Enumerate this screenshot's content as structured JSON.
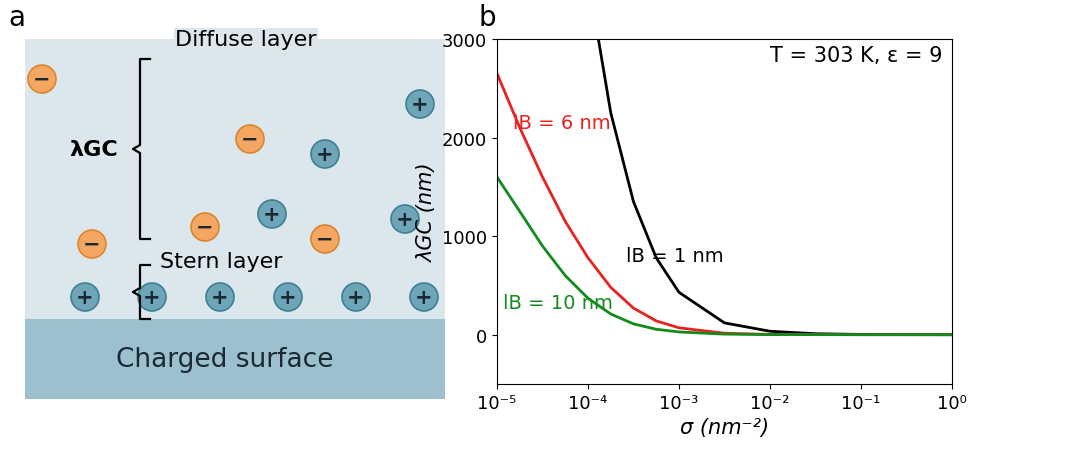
{
  "diagram": {
    "panel_label": "a",
    "diffuse_layer": "Diffuse layer",
    "length_label": "λGC",
    "stern_layer": "Stern layer",
    "surface": "Charged surface",
    "cation_sign": "+",
    "anion_sign": "−"
  },
  "chart_data": {
    "type": "line",
    "panel_label": "b",
    "annotation": "T = 303 K, ε = 9",
    "x_label": "σ (nm⁻²)",
    "y_label": "λGC (nm)",
    "log": "x",
    "xlim": [
      1e-05,
      1
    ],
    "xticks": [
      {
        "value": 1e-05,
        "label": "10⁻⁵"
      },
      {
        "value": 0.0001,
        "label": "10⁻⁴"
      },
      {
        "value": 0.001,
        "label": "10⁻³"
      },
      {
        "value": 0.01,
        "label": "10⁻²"
      },
      {
        "value": 0.1,
        "label": "10⁻¹"
      },
      {
        "value": 1,
        "label": "10⁰"
      }
    ],
    "ylim": [
      -500,
      3000
    ],
    "yticks": [
      0,
      1000,
      2000,
      3000
    ],
    "series": [
      {
        "name": "lB = 1 nm",
        "color": "#000000",
        "x": [
          0.00013,
          0.000178,
          0.000316,
          0.000562,
          0.001,
          0.00316,
          0.01,
          0.0316,
          0.1,
          1
        ],
        "values": [
          3000,
          2250,
          1350,
          780,
          430,
          120,
          35,
          10,
          3,
          0.3
        ]
      },
      {
        "name": "lB = 6 nm",
        "color": "#e8221f",
        "x": [
          1e-05,
          1.78e-05,
          3.16e-05,
          5.62e-05,
          0.0001,
          0.000178,
          0.000316,
          0.000562,
          0.001,
          0.00316,
          0.01,
          0.1,
          1
        ],
        "values": [
          2650,
          2100,
          1600,
          1150,
          780,
          480,
          270,
          140,
          70,
          15,
          3,
          0.3,
          0.03
        ]
      },
      {
        "name": "lB = 10 nm",
        "color": "#138a1c",
        "x": [
          1e-05,
          1.78e-05,
          3.16e-05,
          5.62e-05,
          0.0001,
          0.000178,
          0.000316,
          0.000562,
          0.001,
          0.00316,
          0.01,
          0.1,
          1
        ],
        "values": [
          1600,
          1250,
          900,
          600,
          370,
          210,
          110,
          55,
          28,
          6,
          1.5,
          0.1,
          0.01
        ]
      }
    ]
  }
}
